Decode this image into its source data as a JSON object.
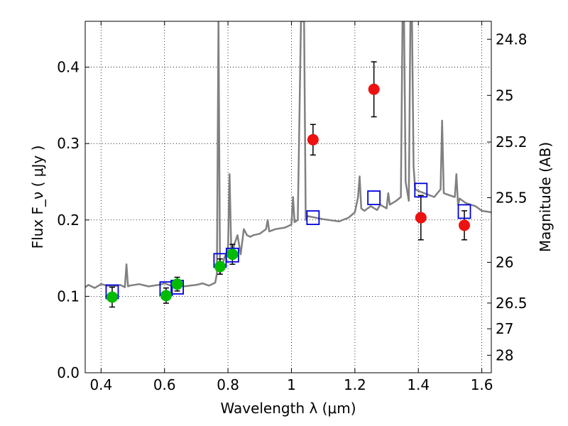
{
  "chart_data": {
    "type": "scatter",
    "title": "",
    "xlabel": "Wavelength  λ (μm)",
    "ylabel": "Flux  F_ν  ( μJy )",
    "y2label": "Magnitude (AB)",
    "xlim": [
      0.35,
      1.63
    ],
    "ylim": [
      0.0,
      0.46
    ],
    "grid": true,
    "x_ticks": [
      0.4,
      0.6,
      0.8,
      1.0,
      1.2,
      1.4,
      1.6
    ],
    "x_tick_labels": [
      "0.4",
      "0.6",
      "0.8",
      "1",
      "1.2",
      "1.4",
      "1.6"
    ],
    "y_ticks": [
      0.0,
      0.1,
      0.2,
      0.3,
      0.4
    ],
    "y_tick_labels": [
      "0.0",
      "0.1",
      "0.2",
      "0.3",
      "0.4"
    ],
    "y2_ticks": [
      24.8,
      25.0,
      25.2,
      25.5,
      26.0,
      26.5,
      27.0,
      28.0
    ],
    "y2_tick_labels": [
      "24.8",
      "25",
      "25.2",
      "25.5",
      "26",
      "26.5",
      "27",
      "28"
    ],
    "series": [
      {
        "style": "filled-circle",
        "color": "#00bb00",
        "points": [
          {
            "x": 0.435,
            "y": 0.099,
            "err": 0.013
          },
          {
            "x": 0.605,
            "y": 0.101,
            "err": 0.01
          },
          {
            "x": 0.64,
            "y": 0.116,
            "err": 0.009
          },
          {
            "x": 0.775,
            "y": 0.139,
            "err": 0.01
          },
          {
            "x": 0.814,
            "y": 0.155,
            "err": 0.013
          }
        ]
      },
      {
        "style": "filled-circle",
        "color": "#ee1111",
        "points": [
          {
            "x": 1.068,
            "y": 0.305,
            "err": 0.02
          },
          {
            "x": 1.26,
            "y": 0.371,
            "err": 0.036
          },
          {
            "x": 1.408,
            "y": 0.203,
            "err": 0.029
          },
          {
            "x": 1.545,
            "y": 0.193,
            "err": 0.019
          }
        ]
      },
      {
        "style": "open-square",
        "color": "#0000dd",
        "points": [
          {
            "x": 0.435,
            "y": 0.106
          },
          {
            "x": 0.605,
            "y": 0.11
          },
          {
            "x": 0.64,
            "y": 0.112
          },
          {
            "x": 0.775,
            "y": 0.147
          },
          {
            "x": 0.814,
            "y": 0.154
          },
          {
            "x": 1.068,
            "y": 0.203
          },
          {
            "x": 1.26,
            "y": 0.229
          },
          {
            "x": 1.408,
            "y": 0.239
          },
          {
            "x": 1.545,
            "y": 0.211
          }
        ]
      },
      {
        "style": "line",
        "color": "#808080",
        "x": [
          0.35,
          0.36,
          0.38,
          0.4,
          0.42,
          0.44,
          0.46,
          0.475,
          0.48,
          0.485,
          0.49,
          0.52,
          0.55,
          0.58,
          0.6,
          0.62,
          0.64,
          0.66,
          0.7,
          0.72,
          0.74,
          0.75,
          0.76,
          0.765,
          0.77,
          0.775,
          0.78,
          0.79,
          0.8,
          0.805,
          0.81,
          0.815,
          0.82,
          0.83,
          0.84,
          0.85,
          0.86,
          0.87,
          0.88,
          0.9,
          0.92,
          0.925,
          0.93,
          0.95,
          0.98,
          1.0,
          1.005,
          1.01,
          1.02,
          1.03,
          1.035,
          1.04,
          1.045,
          1.05,
          1.1,
          1.15,
          1.18,
          1.2,
          1.21,
          1.215,
          1.22,
          1.23,
          1.25,
          1.27,
          1.28,
          1.3,
          1.305,
          1.31,
          1.33,
          1.345,
          1.35,
          1.355,
          1.36,
          1.37,
          1.375,
          1.38,
          1.385,
          1.39,
          1.4,
          1.45,
          1.47,
          1.475,
          1.48,
          1.5,
          1.515,
          1.52,
          1.525,
          1.53,
          1.55,
          1.58,
          1.6,
          1.63
        ],
        "y": [
          0.112,
          0.115,
          0.111,
          0.116,
          0.114,
          0.113,
          0.115,
          0.112,
          0.142,
          0.113,
          0.114,
          0.116,
          0.113,
          0.115,
          0.117,
          0.114,
          0.116,
          0.113,
          0.115,
          0.117,
          0.114,
          0.116,
          0.118,
          0.13,
          0.46,
          0.13,
          0.138,
          0.152,
          0.16,
          0.26,
          0.165,
          0.157,
          0.168,
          0.18,
          0.155,
          0.188,
          0.18,
          0.178,
          0.18,
          0.182,
          0.188,
          0.2,
          0.185,
          0.188,
          0.19,
          0.194,
          0.23,
          0.197,
          0.2,
          0.46,
          0.46,
          0.46,
          0.2,
          0.205,
          0.201,
          0.198,
          0.203,
          0.21,
          0.23,
          0.257,
          0.215,
          0.212,
          0.218,
          0.213,
          0.22,
          0.215,
          0.235,
          0.22,
          0.225,
          0.23,
          0.46,
          0.46,
          0.25,
          0.225,
          0.46,
          0.46,
          0.27,
          0.24,
          0.238,
          0.23,
          0.24,
          0.33,
          0.235,
          0.232,
          0.23,
          0.26,
          0.22,
          0.228,
          0.222,
          0.218,
          0.212,
          0.21
        ]
      }
    ]
  }
}
